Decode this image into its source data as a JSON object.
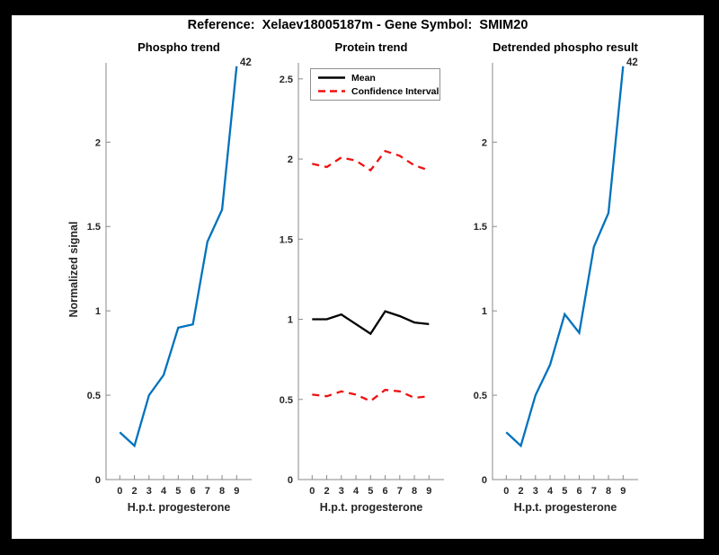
{
  "figure": {
    "title": "Reference:  Xelaev18005187m - Gene Symbol:  SMIM20",
    "background": "#ffffff",
    "frame_color": "#000000"
  },
  "colors": {
    "blue": "#0072BD",
    "red": "#EE1111",
    "black": "#000000",
    "axis": "#8a8a8a",
    "tick_text": "#262626"
  },
  "legend": {
    "entries": [
      {
        "label": "Mean",
        "color": "#000000",
        "style": "solid"
      },
      {
        "label": "Confidence Interval",
        "color": "#EE1111",
        "style": "dashed"
      }
    ],
    "position": "top-left"
  },
  "chart_data": [
    {
      "type": "line",
      "title": "Phospho trend",
      "xlabel": "H.p.t. progesterone",
      "ylabel": "Normalized signal",
      "categories": [
        "0",
        "2",
        "3",
        "4",
        "5",
        "6",
        "7",
        "8",
        "9"
      ],
      "yticks": [
        0,
        0.5,
        1,
        1.5,
        2
      ],
      "ylim": [
        0,
        2.47
      ],
      "grid": false,
      "end_label": "42",
      "series": [
        {
          "name": "Phospho",
          "color": "#0072BD",
          "style": "solid",
          "values": [
            0.28,
            0.2,
            0.5,
            0.62,
            0.9,
            0.92,
            1.41,
            1.6,
            2.45
          ]
        }
      ]
    },
    {
      "type": "line",
      "title": "Protein trend",
      "xlabel": "H.p.t. progesterone",
      "ylabel": "",
      "categories": [
        "0",
        "2",
        "3",
        "4",
        "5",
        "6",
        "7",
        "8",
        "9"
      ],
      "yticks": [
        0,
        0.5,
        1,
        1.5,
        2,
        2.5
      ],
      "ylim": [
        0,
        2.6
      ],
      "grid": false,
      "end_label": "",
      "series": [
        {
          "name": "Mean",
          "color": "#000000",
          "style": "solid",
          "values": [
            1.0,
            1.0,
            1.03,
            0.97,
            0.91,
            1.05,
            1.02,
            0.98,
            0.97
          ]
        },
        {
          "name": "Confidence Interval upper",
          "color": "#EE1111",
          "style": "dashed",
          "values": [
            1.97,
            1.95,
            2.01,
            1.99,
            1.93,
            2.05,
            2.02,
            1.96,
            1.93
          ]
        },
        {
          "name": "Confidence Interval lower",
          "color": "#EE1111",
          "style": "dashed",
          "values": [
            0.53,
            0.52,
            0.55,
            0.53,
            0.49,
            0.56,
            0.55,
            0.51,
            0.52
          ]
        }
      ]
    },
    {
      "type": "line",
      "title": "Detrended phospho result",
      "xlabel": "H.p.t. progesterone",
      "ylabel": "",
      "categories": [
        "0",
        "2",
        "3",
        "4",
        "5",
        "6",
        "7",
        "8",
        "9"
      ],
      "yticks": [
        0,
        0.5,
        1,
        1.5,
        2
      ],
      "ylim": [
        0,
        2.47
      ],
      "grid": false,
      "end_label": "42",
      "series": [
        {
          "name": "Detrended phospho",
          "color": "#0072BD",
          "style": "solid",
          "values": [
            0.28,
            0.2,
            0.5,
            0.68,
            0.98,
            0.87,
            1.38,
            1.58,
            2.45
          ]
        }
      ]
    }
  ]
}
